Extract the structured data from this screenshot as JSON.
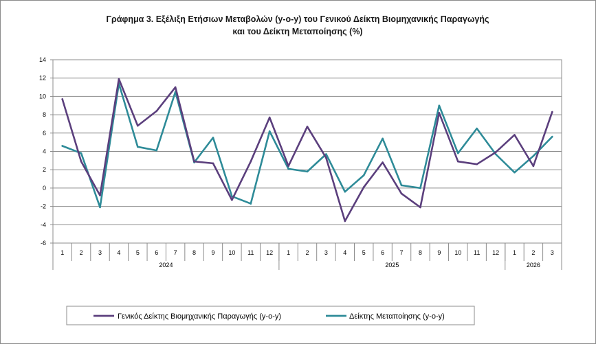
{
  "chart_data": {
    "type": "line",
    "title_lines": [
      "Γράφημα 3. Εξέλιξη Ετήσιων Μεταβολών (y-o-y) του Γενικού Δείκτη Βιομηχανικής Παραγωγής",
      "και του Δείκτη Μεταποίησης (%)"
    ],
    "ylim": [
      -6,
      14
    ],
    "y_ticks": [
      -6,
      -4,
      -2,
      0,
      2,
      4,
      6,
      8,
      10,
      12,
      14
    ],
    "x": [
      "1",
      "2",
      "3",
      "4",
      "5",
      "6",
      "7",
      "8",
      "9",
      "10",
      "11",
      "12",
      "1",
      "2",
      "3",
      "4",
      "5",
      "6",
      "7",
      "8",
      "9",
      "10",
      "11",
      "12",
      "1",
      "2",
      "3"
    ],
    "year_groups": [
      {
        "label": "2024",
        "count": 12
      },
      {
        "label": "2025",
        "count": 12
      },
      {
        "label": "2026",
        "count": 3
      }
    ],
    "grid": "horizontal",
    "legend_position": "bottom",
    "series": [
      {
        "name": "Γενικός Δείκτης Βιομηχανικής Παραγωγής (y-o-y)",
        "color": "#5b3f7d",
        "values": [
          9.7,
          2.9,
          -0.8,
          11.9,
          6.8,
          8.4,
          11.0,
          2.9,
          2.7,
          -1.3,
          2.9,
          7.7,
          2.4,
          6.7,
          3.3,
          -3.6,
          0.1,
          2.8,
          -0.6,
          -2.1,
          8.2,
          2.9,
          2.6,
          3.9,
          5.8,
          2.4,
          8.3
        ]
      },
      {
        "name": "Δείκτης Μεταποίησης (y-o-y)",
        "color": "#2e8b98",
        "values": [
          4.6,
          3.8,
          -2.1,
          11.4,
          4.5,
          4.1,
          10.5,
          2.8,
          5.5,
          -0.9,
          -1.7,
          6.2,
          2.1,
          1.8,
          3.7,
          -0.4,
          1.4,
          5.4,
          0.3,
          0.0,
          9.0,
          3.8,
          6.5,
          3.7,
          1.7,
          3.5,
          5.6
        ]
      }
    ]
  }
}
